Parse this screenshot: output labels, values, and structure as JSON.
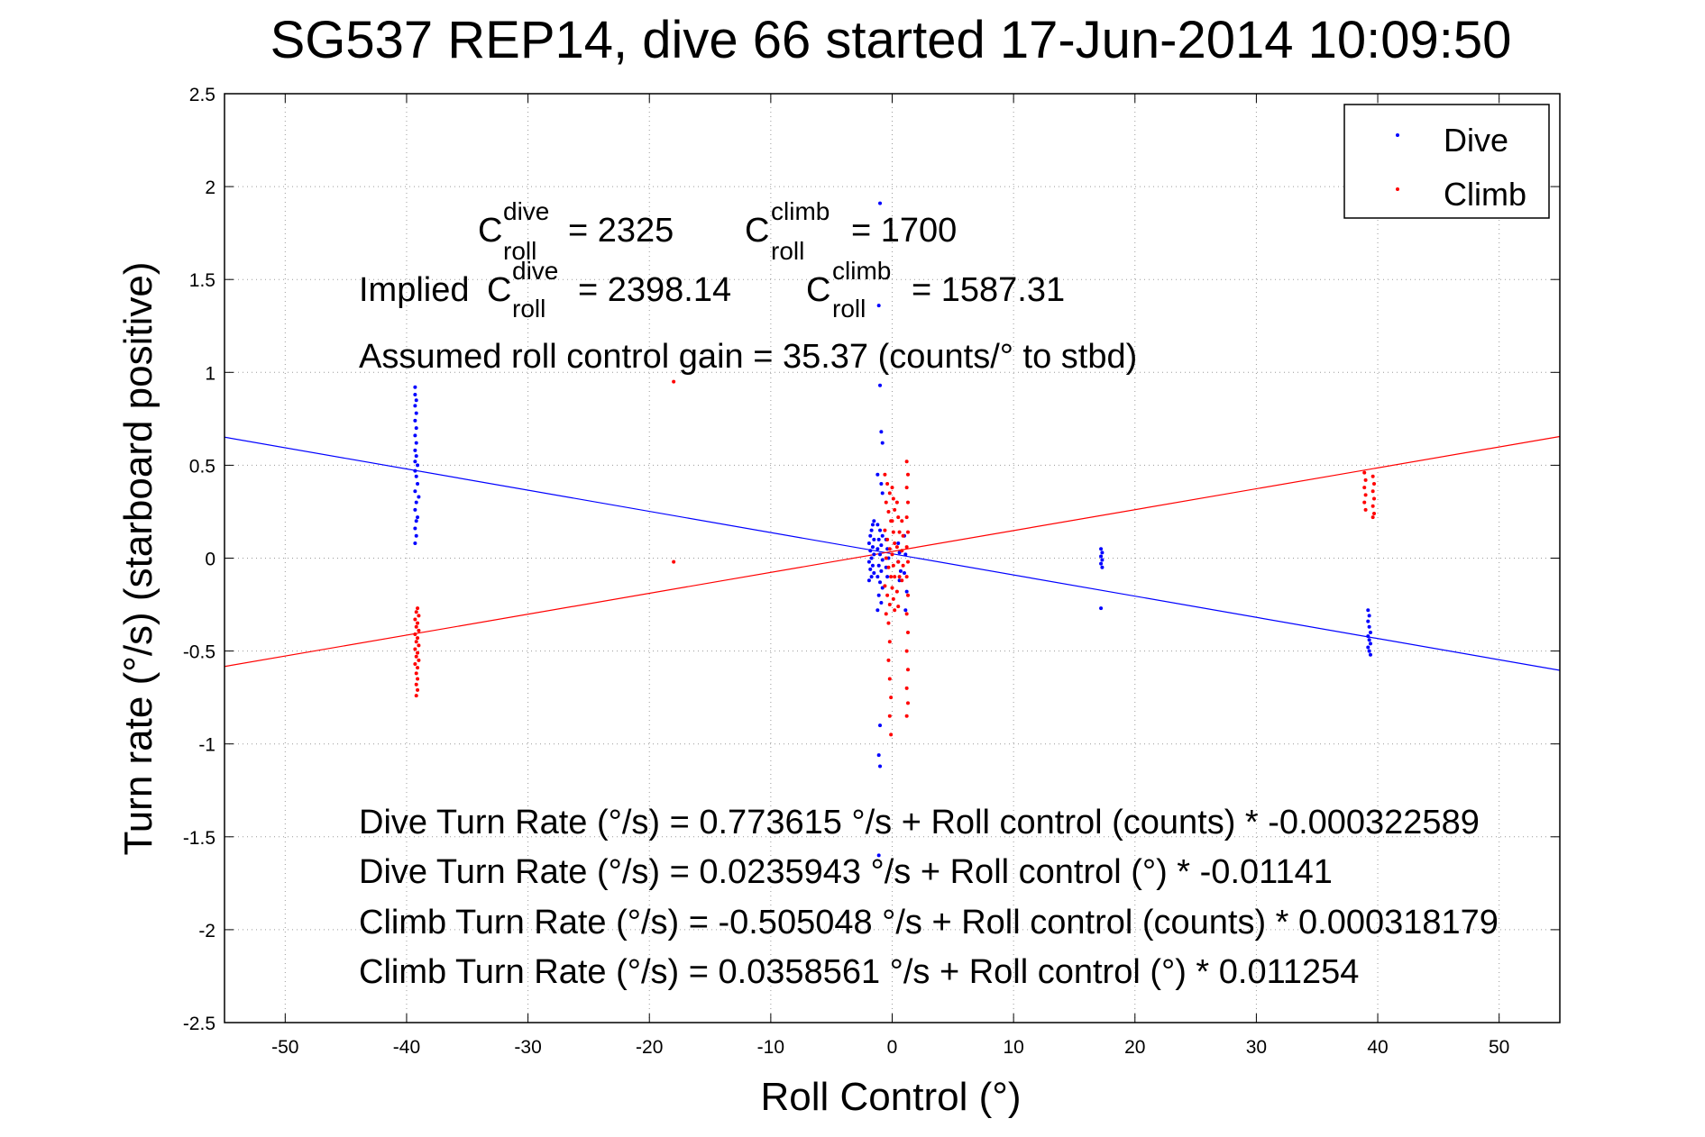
{
  "chart_data": {
    "type": "scatter",
    "title": "SG537 REP14, dive 66 started 17-Jun-2014 10:09:50",
    "xlabel": "Roll Control (°)",
    "ylabel": "Turn rate (°/s) (starboard positive)",
    "xlim": [
      -55,
      55
    ],
    "ylim": [
      -2.5,
      2.5
    ],
    "xticks": [
      "-50",
      "-40",
      "-30",
      "-20",
      "-10",
      "0",
      "10",
      "20",
      "30",
      "40",
      "50"
    ],
    "yticks": [
      "2.5",
      "2",
      "1.5",
      "1",
      "0.5",
      "0",
      "-0.5",
      "-1",
      "-1.5",
      "-2",
      "-2.5"
    ],
    "grid": true,
    "legend": {
      "location": "top-right",
      "entries": [
        {
          "label": "Dive",
          "color": "#0000ff"
        },
        {
          "label": "Climb",
          "color": "#ff0000"
        }
      ]
    },
    "annotations": {
      "c_dive": {
        "base": "C",
        "sup": "dive",
        "sub": "roll",
        "value": "= 2325"
      },
      "c_climb": {
        "base": "C",
        "sup": "climb",
        "sub": "roll",
        "value": "= 1700"
      },
      "implied_prefix": "Implied",
      "implied_dive": {
        "base": "C",
        "sup": "dive",
        "sub": "roll",
        "value": "= 2398.14"
      },
      "implied_climb": {
        "base": "C",
        "sup": "climb",
        "sub": "roll",
        "value": "= 1587.31"
      },
      "gain": "Assumed roll control gain = 35.37 (counts/° to stbd)",
      "eq1": "Dive Turn Rate (°/s) = 0.773615 °/s + Roll control (counts) * -0.000322589",
      "eq2": "Dive Turn Rate (°/s) = 0.0235943 °/s + Roll control (°) * -0.01141",
      "eq3": "Climb Turn Rate (°/s) = -0.505048 °/s + Roll control (counts) * 0.000318179",
      "eq4": "Climb Turn Rate (°/s) = 0.0358561 °/s + Roll control (°) * 0.011254"
    },
    "fit_lines": [
      {
        "name": "Dive",
        "color": "#0000ff",
        "intercept": 0.0235943,
        "slope": -0.01141
      },
      {
        "name": "Climb",
        "color": "#ff0000",
        "intercept": 0.0358561,
        "slope": 0.011254
      }
    ],
    "series": [
      {
        "name": "Dive",
        "color": "#0000ff",
        "points": [
          [
            -39.3,
            0.92
          ],
          [
            -39.3,
            0.88
          ],
          [
            -39.2,
            0.85
          ],
          [
            -39.3,
            0.82
          ],
          [
            -39.2,
            0.78
          ],
          [
            -39.3,
            0.74
          ],
          [
            -39.2,
            0.7
          ],
          [
            -39.3,
            0.66
          ],
          [
            -39.2,
            0.62
          ],
          [
            -39.3,
            0.58
          ],
          [
            -39.2,
            0.55
          ],
          [
            -39.3,
            0.52
          ],
          [
            -39.1,
            0.5
          ],
          [
            -39.3,
            0.47
          ],
          [
            -39.2,
            0.44
          ],
          [
            -39.1,
            0.4
          ],
          [
            -39.3,
            0.36
          ],
          [
            -39.0,
            0.33
          ],
          [
            -39.2,
            0.3
          ],
          [
            -39.3,
            0.26
          ],
          [
            -39.1,
            0.22
          ],
          [
            -39.2,
            0.2
          ],
          [
            -39.3,
            0.16
          ],
          [
            -39.2,
            0.12
          ],
          [
            -39.3,
            0.08
          ],
          [
            -1.0,
            1.91
          ],
          [
            -1.1,
            1.36
          ],
          [
            -1.0,
            0.93
          ],
          [
            -0.9,
            0.68
          ],
          [
            -0.8,
            0.62
          ],
          [
            -1.2,
            0.45
          ],
          [
            -0.9,
            0.4
          ],
          [
            -0.8,
            0.35
          ],
          [
            -1.5,
            0.2
          ],
          [
            -1.6,
            0.18
          ],
          [
            -1.7,
            0.15
          ],
          [
            -1.8,
            0.12
          ],
          [
            -1.5,
            0.1
          ],
          [
            -1.9,
            0.08
          ],
          [
            -1.6,
            0.06
          ],
          [
            -1.8,
            0.04
          ],
          [
            -1.5,
            0.02
          ],
          [
            -1.7,
            0.0
          ],
          [
            -1.9,
            -0.02
          ],
          [
            -1.6,
            -0.04
          ],
          [
            -1.8,
            -0.06
          ],
          [
            -1.5,
            -0.08
          ],
          [
            -1.7,
            -0.1
          ],
          [
            -1.9,
            -0.12
          ],
          [
            -1.2,
            0.18
          ],
          [
            -1.0,
            0.15
          ],
          [
            -0.8,
            0.12
          ],
          [
            -1.1,
            0.1
          ],
          [
            -0.9,
            0.07
          ],
          [
            -1.2,
            0.05
          ],
          [
            -1.0,
            0.02
          ],
          [
            -0.8,
            -0.01
          ],
          [
            -1.1,
            -0.04
          ],
          [
            -0.9,
            -0.07
          ],
          [
            -1.2,
            -0.1
          ],
          [
            -1.0,
            -0.13
          ],
          [
            -0.8,
            -0.16
          ],
          [
            -1.1,
            -0.2
          ],
          [
            -0.9,
            -0.24
          ],
          [
            -1.2,
            -0.28
          ],
          [
            -0.5,
            0.1
          ],
          [
            -0.4,
            0.05
          ],
          [
            -0.3,
            0.0
          ],
          [
            -0.5,
            -0.05
          ],
          [
            -0.4,
            -0.1
          ],
          [
            0.5,
            0.08
          ],
          [
            0.6,
            0.03
          ],
          [
            0.5,
            -0.02
          ],
          [
            0.7,
            -0.07
          ],
          [
            0.6,
            -0.12
          ],
          [
            1.0,
            0.12
          ],
          [
            1.1,
            0.02
          ],
          [
            1.0,
            -0.08
          ],
          [
            1.2,
            -0.18
          ],
          [
            1.1,
            -0.28
          ],
          [
            -1.0,
            -0.9
          ],
          [
            -1.1,
            -1.06
          ],
          [
            -1.0,
            -1.12
          ],
          [
            -1.1,
            -1.6
          ],
          [
            17.2,
            0.05
          ],
          [
            17.3,
            0.03
          ],
          [
            17.2,
            0.01
          ],
          [
            17.3,
            -0.01
          ],
          [
            17.2,
            -0.03
          ],
          [
            17.3,
            -0.05
          ],
          [
            17.2,
            -0.27
          ],
          [
            39.2,
            -0.28
          ],
          [
            39.3,
            -0.31
          ],
          [
            39.2,
            -0.34
          ],
          [
            39.3,
            -0.37
          ],
          [
            39.4,
            -0.4
          ],
          [
            39.2,
            -0.42
          ],
          [
            39.3,
            -0.44
          ],
          [
            39.4,
            -0.46
          ],
          [
            39.2,
            -0.48
          ],
          [
            39.3,
            -0.5
          ],
          [
            39.4,
            -0.52
          ]
        ]
      },
      {
        "name": "Climb",
        "color": "#ff0000",
        "points": [
          [
            -39.1,
            -0.27
          ],
          [
            -39.2,
            -0.29
          ],
          [
            -39.0,
            -0.31
          ],
          [
            -39.3,
            -0.33
          ],
          [
            -39.1,
            -0.35
          ],
          [
            -39.2,
            -0.37
          ],
          [
            -39.0,
            -0.39
          ],
          [
            -39.3,
            -0.41
          ],
          [
            -39.1,
            -0.43
          ],
          [
            -39.2,
            -0.45
          ],
          [
            -39.0,
            -0.47
          ],
          [
            -39.3,
            -0.49
          ],
          [
            -39.1,
            -0.51
          ],
          [
            -39.2,
            -0.53
          ],
          [
            -39.0,
            -0.55
          ],
          [
            -39.3,
            -0.57
          ],
          [
            -39.1,
            -0.59
          ],
          [
            -39.2,
            -0.62
          ],
          [
            -39.1,
            -0.65
          ],
          [
            -39.2,
            -0.68
          ],
          [
            -39.1,
            -0.71
          ],
          [
            -39.2,
            -0.74
          ],
          [
            -18.0,
            0.95
          ],
          [
            -18.0,
            -0.02
          ],
          [
            -0.6,
            0.45
          ],
          [
            -0.4,
            0.4
          ],
          [
            -0.2,
            0.35
          ],
          [
            -0.5,
            0.3
          ],
          [
            -0.3,
            0.25
          ],
          [
            -0.1,
            0.2
          ],
          [
            -0.6,
            0.15
          ],
          [
            -0.4,
            0.1
          ],
          [
            -0.2,
            0.05
          ],
          [
            -0.5,
            0.0
          ],
          [
            -0.3,
            -0.05
          ],
          [
            -0.1,
            -0.1
          ],
          [
            -0.6,
            -0.15
          ],
          [
            -0.4,
            -0.2
          ],
          [
            -0.2,
            -0.25
          ],
          [
            -0.5,
            -0.3
          ],
          [
            0.0,
            0.38
          ],
          [
            0.1,
            0.32
          ],
          [
            0.2,
            0.26
          ],
          [
            0.0,
            0.2
          ],
          [
            0.1,
            0.14
          ],
          [
            0.2,
            0.08
          ],
          [
            0.0,
            0.02
          ],
          [
            0.1,
            -0.04
          ],
          [
            0.2,
            -0.1
          ],
          [
            0.0,
            -0.16
          ],
          [
            0.1,
            -0.22
          ],
          [
            0.2,
            -0.28
          ],
          [
            0.4,
            0.3
          ],
          [
            0.5,
            0.22
          ],
          [
            0.6,
            0.14
          ],
          [
            0.4,
            0.06
          ],
          [
            0.5,
            -0.02
          ],
          [
            0.6,
            -0.1
          ],
          [
            0.4,
            -0.18
          ],
          [
            0.5,
            -0.26
          ],
          [
            0.8,
            0.2
          ],
          [
            0.9,
            0.12
          ],
          [
            0.8,
            0.04
          ],
          [
            0.9,
            -0.04
          ],
          [
            0.8,
            -0.12
          ],
          [
            -0.3,
            -0.35
          ],
          [
            -0.2,
            -0.45
          ],
          [
            -0.3,
            -0.55
          ],
          [
            -0.2,
            -0.65
          ],
          [
            -0.1,
            -0.75
          ],
          [
            -0.2,
            -0.85
          ],
          [
            -0.1,
            -0.95
          ],
          [
            1.2,
            0.52
          ],
          [
            1.3,
            0.45
          ],
          [
            1.2,
            0.38
          ],
          [
            1.3,
            0.3
          ],
          [
            1.2,
            0.22
          ],
          [
            1.3,
            0.14
          ],
          [
            1.2,
            0.06
          ],
          [
            1.3,
            -0.02
          ],
          [
            1.2,
            -0.1
          ],
          [
            1.3,
            -0.2
          ],
          [
            1.2,
            -0.3
          ],
          [
            1.3,
            -0.4
          ],
          [
            1.2,
            -0.5
          ],
          [
            1.3,
            -0.6
          ],
          [
            1.2,
            -0.7
          ],
          [
            1.3,
            -0.78
          ],
          [
            1.2,
            -0.85
          ],
          [
            38.9,
            0.46
          ],
          [
            39.0,
            0.42
          ],
          [
            38.9,
            0.38
          ],
          [
            39.0,
            0.34
          ],
          [
            38.9,
            0.3
          ],
          [
            39.0,
            0.26
          ],
          [
            39.6,
            0.44
          ],
          [
            39.7,
            0.4
          ],
          [
            39.6,
            0.36
          ],
          [
            39.7,
            0.32
          ],
          [
            39.6,
            0.28
          ],
          [
            39.7,
            0.24
          ],
          [
            39.6,
            0.22
          ]
        ]
      }
    ]
  }
}
